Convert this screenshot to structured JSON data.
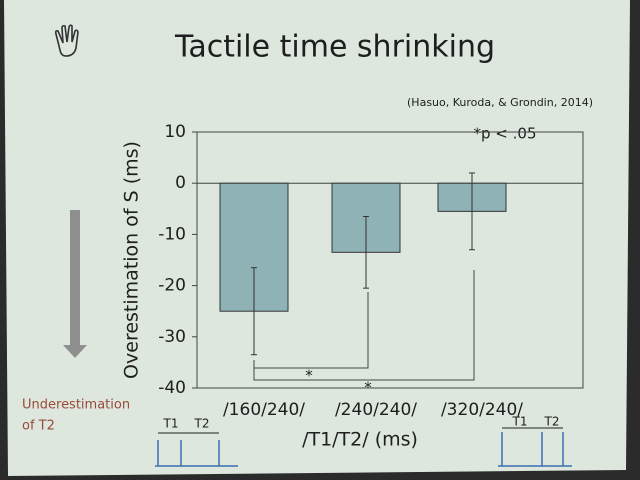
{
  "chart_data": {
    "type": "bar",
    "title": "Tactile time shrinking",
    "source": "(Hasuo, Kuroda, & Grondin, 2014)",
    "note": "*p < .05",
    "y_label": "Overestimation of S (ms)",
    "x_label": "/T1/T2/ (ms)",
    "side_note": [
      "Underestimation",
      "of T2"
    ],
    "categories": [
      "/160/240/",
      "/240/240/",
      "/320/240/"
    ],
    "values": [
      -25,
      -13.5,
      -5.5
    ],
    "errors": [
      8.5,
      7,
      7.5
    ],
    "color": "#8fb2b6",
    "ylim": [
      -40,
      10
    ],
    "yticks": [
      -40,
      -30,
      -20,
      -10,
      0,
      10
    ],
    "significance": [
      "*",
      "*"
    ],
    "timing_labels": [
      "T1",
      "T2",
      "T1",
      "T2"
    ]
  }
}
